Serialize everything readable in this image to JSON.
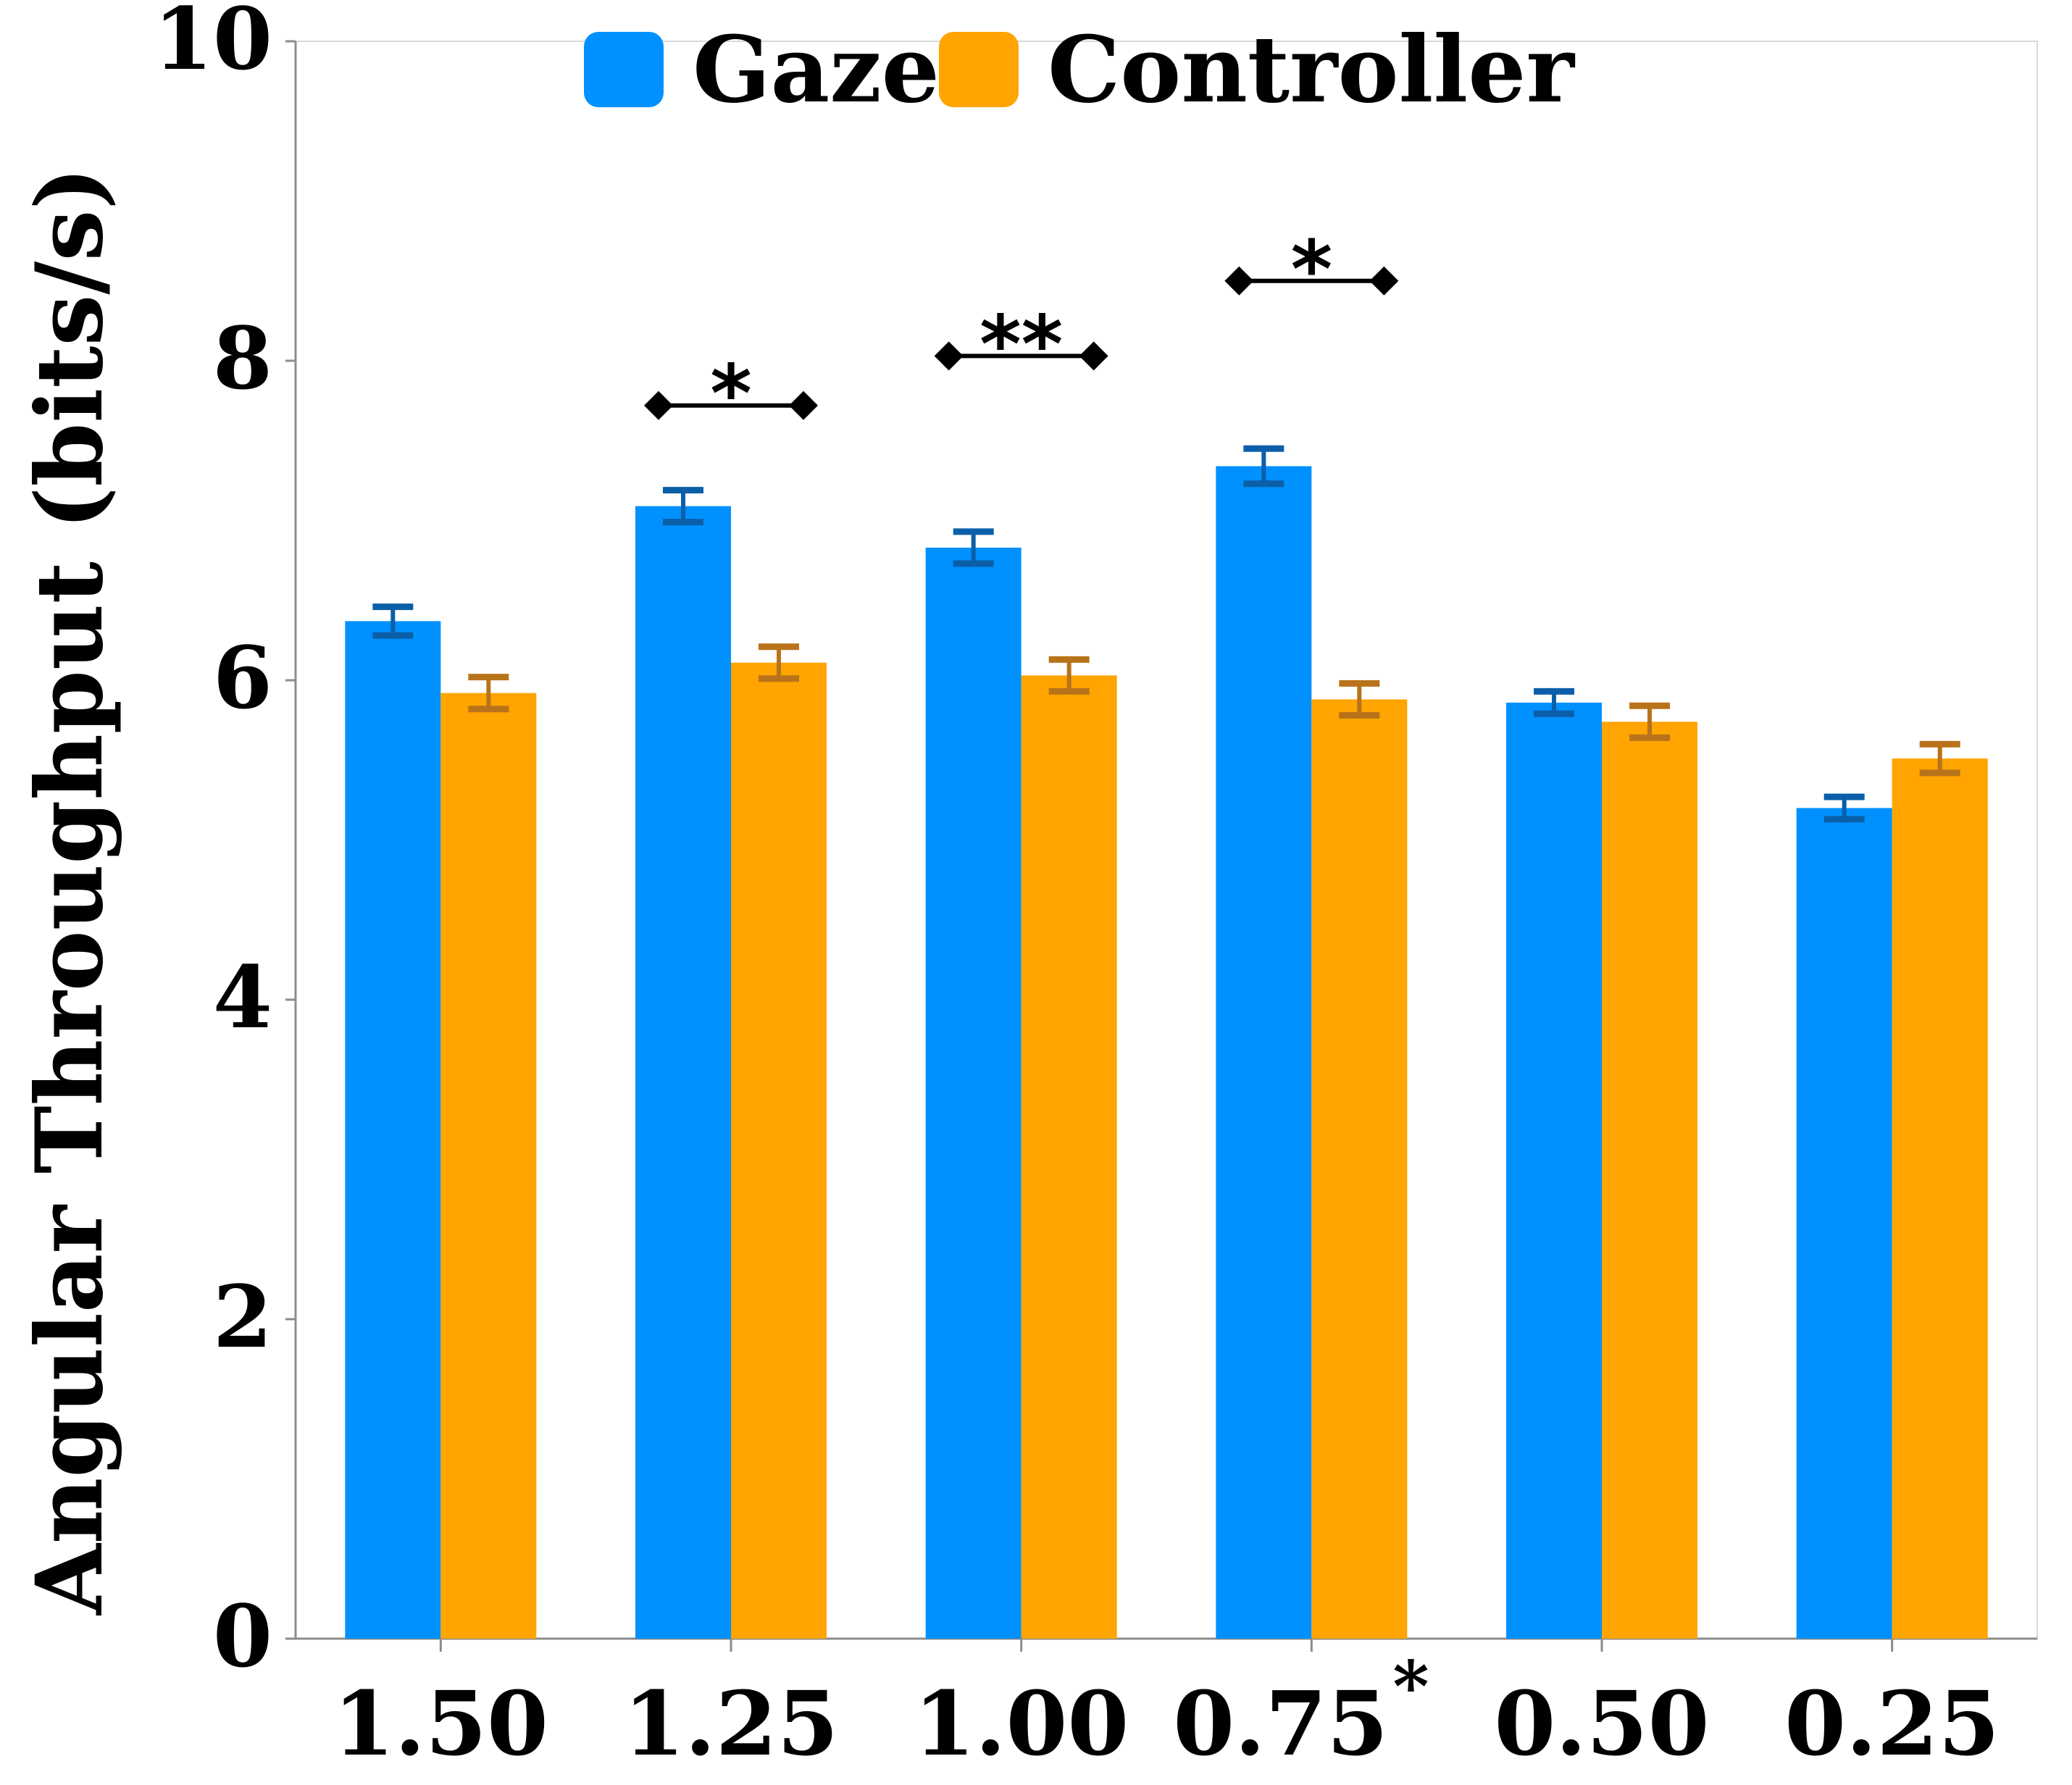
{
  "chart_data": {
    "type": "bar",
    "title": "",
    "xlabel": "",
    "ylabel": "Angular Throughput (bits/s)",
    "ylim": [
      0,
      10
    ],
    "yticks": [
      0,
      2,
      4,
      6,
      8,
      10
    ],
    "categories": [
      "1.50",
      "1.25",
      "1.00",
      "0.75",
      "0.50",
      "0.25"
    ],
    "category_marks": [
      "",
      "",
      "",
      "*",
      "",
      ""
    ],
    "legend": {
      "position": "top-center"
    },
    "grid": false,
    "series": [
      {
        "name": "Gaze",
        "color": "#0091FF",
        "error_color": "#0B5FA8",
        "values": [
          6.37,
          7.09,
          6.83,
          7.34,
          5.86,
          5.2
        ],
        "errors": [
          0.09,
          0.1,
          0.1,
          0.11,
          0.07,
          0.07
        ]
      },
      {
        "name": "Controller",
        "color": "#FFA400",
        "error_color": "#B8731A",
        "values": [
          5.92,
          6.11,
          6.03,
          5.88,
          5.74,
          5.51
        ],
        "errors": [
          0.1,
          0.1,
          0.1,
          0.1,
          0.1,
          0.09
        ]
      }
    ],
    "significance": [
      {
        "category_index": 1,
        "label": "*",
        "y": 7.72
      },
      {
        "category_index": 2,
        "label": "**",
        "y": 8.03
      },
      {
        "category_index": 3,
        "label": "*",
        "y": 8.5
      }
    ]
  }
}
